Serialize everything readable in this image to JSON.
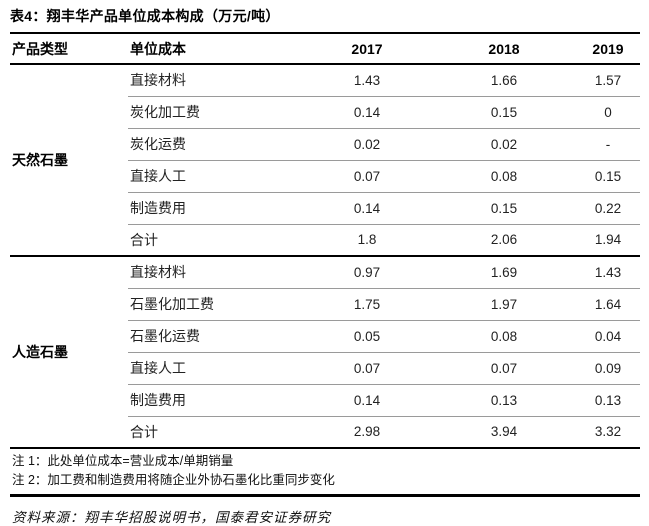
{
  "title": "表4：翔丰华产品单位成本构成（万元/吨）",
  "table": {
    "headers": {
      "product_type": "产品类型",
      "unit_cost": "单位成本",
      "y2017": "2017",
      "y2018": "2018",
      "y2019": "2019"
    },
    "groups": [
      {
        "name": "天然石墨",
        "rows": [
          {
            "label": "直接材料",
            "y2017": "1.43",
            "y2018": "1.66",
            "y2019": "1.57"
          },
          {
            "label": "炭化加工费",
            "y2017": "0.14",
            "y2018": "0.15",
            "y2019": "0"
          },
          {
            "label": "炭化运费",
            "y2017": "0.02",
            "y2018": "0.02",
            "y2019": "-"
          },
          {
            "label": "直接人工",
            "y2017": "0.07",
            "y2018": "0.08",
            "y2019": "0.15"
          },
          {
            "label": "制造费用",
            "y2017": "0.14",
            "y2018": "0.15",
            "y2019": "0.22"
          },
          {
            "label": "合计",
            "y2017": "1.8",
            "y2018": "2.06",
            "y2019": "1.94"
          }
        ]
      },
      {
        "name": "人造石墨",
        "rows": [
          {
            "label": "直接材料",
            "y2017": "0.97",
            "y2018": "1.69",
            "y2019": "1.43"
          },
          {
            "label": "石墨化加工费",
            "y2017": "1.75",
            "y2018": "1.97",
            "y2019": "1.64"
          },
          {
            "label": "石墨化运费",
            "y2017": "0.05",
            "y2018": "0.08",
            "y2019": "0.04"
          },
          {
            "label": "直接人工",
            "y2017": "0.07",
            "y2018": "0.07",
            "y2019": "0.09"
          },
          {
            "label": "制造费用",
            "y2017": "0.14",
            "y2018": "0.13",
            "y2019": "0.13"
          },
          {
            "label": "合计",
            "y2017": "2.98",
            "y2018": "3.94",
            "y2019": "3.32"
          }
        ]
      }
    ]
  },
  "notes": [
    "注 1：此处单位成本=营业成本/单期销量",
    "注 2：加工费和制造费用将随企业外协石墨化比重同步变化"
  ],
  "source": "资料来源：翔丰华招股说明书，国泰君安证券研究",
  "colors": {
    "background": "#ffffff",
    "text": "#1a1a1a",
    "border_strong": "#000000",
    "border_light": "#9a9a9a"
  }
}
